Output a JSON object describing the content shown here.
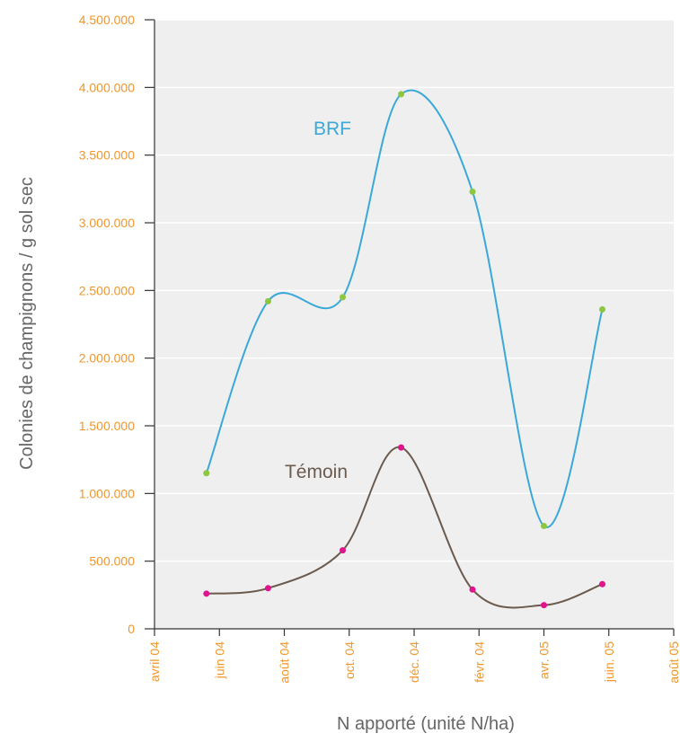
{
  "chart_data": {
    "type": "line",
    "x_label": "N apporté (unité N/ha)",
    "y_label": "Colonies de champignons / g sol sec",
    "x": [
      1.6,
      3.5,
      5.8,
      7.6,
      9.8,
      12.0,
      13.8
    ],
    "series": [
      {
        "name": "BRF",
        "color": "#3aa8d8",
        "marker_color": "#8dc63f",
        "values": [
          1150000,
          2420000,
          2450000,
          3950000,
          3230000,
          760000,
          2360000
        ]
      },
      {
        "name": "Témoin",
        "color": "#6b5a4e",
        "marker_color": "#e0148c",
        "values": [
          260000,
          300000,
          580000,
          1340000,
          290000,
          175000,
          330000
        ]
      }
    ],
    "xlim": [
      0,
      16
    ],
    "xticks": [
      {
        "value": 0,
        "label": "avril 04"
      },
      {
        "value": 2,
        "label": "juin 04"
      },
      {
        "value": 4,
        "label": "août 04"
      },
      {
        "value": 6,
        "label": "oct. 04"
      },
      {
        "value": 8,
        "label": "déc. 04"
      },
      {
        "value": 10,
        "label": "févr. 04"
      },
      {
        "value": 12,
        "label": "avr. 05"
      },
      {
        "value": 14,
        "label": "juin. 05"
      },
      {
        "value": 16,
        "label": "août 05"
      }
    ],
    "ylim": [
      0,
      4500000
    ],
    "yticks": [
      0,
      {
        "value": 500000,
        "label": "500.000"
      },
      {
        "value": 1000000,
        "label": "1.000.000"
      },
      {
        "value": 1500000,
        "label": "1.500.000"
      },
      {
        "value": 2000000,
        "label": "2.000.000"
      },
      {
        "value": 2500000,
        "label": "2.500.000"
      },
      {
        "value": 3000000,
        "label": "3.000.000"
      },
      {
        "value": 3500000,
        "label": "3.500.000"
      },
      {
        "value": 4000000,
        "label": "4.000.000"
      },
      {
        "value": 4500000,
        "label": "4.500.000"
      }
    ],
    "grid": true,
    "tick_color": "#f0962a"
  }
}
